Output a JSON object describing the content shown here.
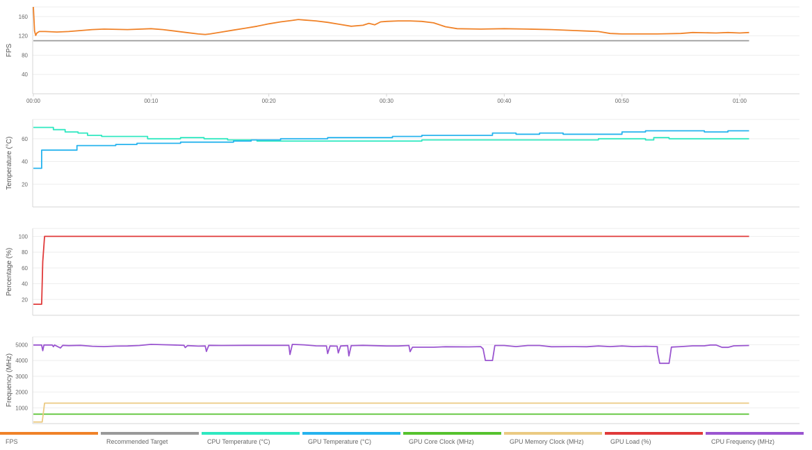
{
  "chart_data": [
    {
      "type": "line",
      "ylabel": "FPS",
      "ylim": [
        0,
        180
      ],
      "yticks": [
        40,
        80,
        120,
        160
      ],
      "xlim": [
        0,
        65
      ],
      "xticks": [
        0,
        10,
        20,
        30,
        40,
        50,
        60
      ],
      "xtick_labels": [
        "00:00",
        "00:10",
        "00:20",
        "00:30",
        "00:40",
        "00:50",
        "01:00"
      ],
      "series": [
        {
          "name": "FPS",
          "color": "#f08228",
          "points": [
            [
              0,
              180
            ],
            [
              0.1,
              130
            ],
            [
              0.2,
              121
            ],
            [
              0.3,
              126
            ],
            [
              0.5,
              129
            ],
            [
              1,
              129
            ],
            [
              2,
              128
            ],
            [
              3,
              129
            ],
            [
              4,
              131
            ],
            [
              5,
              133
            ],
            [
              6,
              134
            ],
            [
              8,
              133
            ],
            [
              10,
              135
            ],
            [
              11,
              133
            ],
            [
              12,
              130
            ],
            [
              13,
              127
            ],
            [
              14,
              124
            ],
            [
              14.6,
              123
            ],
            [
              15,
              124
            ],
            [
              16,
              128
            ],
            [
              17,
              132
            ],
            [
              18,
              136
            ],
            [
              19,
              140
            ],
            [
              20,
              145
            ],
            [
              21,
              149
            ],
            [
              22,
              152
            ],
            [
              22.5,
              154
            ],
            [
              23,
              153
            ],
            [
              24,
              151
            ],
            [
              25,
              148
            ],
            [
              26,
              144
            ],
            [
              27,
              140
            ],
            [
              28,
              142
            ],
            [
              28.5,
              146
            ],
            [
              29,
              143
            ],
            [
              29.5,
              149
            ],
            [
              30,
              150
            ],
            [
              31,
              151
            ],
            [
              32,
              151
            ],
            [
              33,
              150
            ],
            [
              34,
              147
            ],
            [
              35,
              139
            ],
            [
              36,
              135
            ],
            [
              38,
              134
            ],
            [
              40,
              135
            ],
            [
              42,
              134
            ],
            [
              44,
              133
            ],
            [
              46,
              131
            ],
            [
              47,
              130
            ],
            [
              48,
              129
            ],
            [
              49,
              125
            ],
            [
              50,
              124
            ],
            [
              52,
              124
            ],
            [
              53,
              124
            ],
            [
              55,
              125
            ],
            [
              56,
              127
            ],
            [
              58,
              126
            ],
            [
              59,
              127
            ],
            [
              60,
              126
            ],
            [
              60.8,
              127
            ]
          ]
        },
        {
          "name": "Recommended Target",
          "color": "#999999",
          "points": [
            [
              0,
              110
            ],
            [
              60.8,
              110
            ]
          ]
        }
      ]
    },
    {
      "type": "line",
      "ylabel": "Temperature (°C)",
      "ylim": [
        0,
        77
      ],
      "yticks": [
        20,
        40,
        60
      ],
      "xlim": [
        0,
        65
      ],
      "series": [
        {
          "name": "CPU Temperature (°C)",
          "color": "#2ee8c0",
          "points": [
            [
              0,
              70
            ],
            [
              1.7,
              70
            ],
            [
              1.7,
              68
            ],
            [
              2.7,
              68
            ],
            [
              2.7,
              66
            ],
            [
              3.8,
              66
            ],
            [
              3.8,
              65
            ],
            [
              4.6,
              65
            ],
            [
              4.6,
              63
            ],
            [
              5.8,
              63
            ],
            [
              5.8,
              62
            ],
            [
              9.7,
              62
            ],
            [
              9.7,
              60
            ],
            [
              12.5,
              60
            ],
            [
              12.5,
              61
            ],
            [
              14.5,
              61
            ],
            [
              14.5,
              60
            ],
            [
              16.5,
              60
            ],
            [
              16.5,
              59
            ],
            [
              19,
              59
            ],
            [
              19,
              58
            ],
            [
              33,
              58
            ],
            [
              33,
              59
            ],
            [
              48,
              59
            ],
            [
              48,
              60
            ],
            [
              52,
              60
            ],
            [
              52,
              59
            ],
            [
              52.7,
              59
            ],
            [
              52.7,
              61
            ],
            [
              54,
              61
            ],
            [
              54,
              60
            ],
            [
              60.8,
              60
            ]
          ]
        },
        {
          "name": "GPU Temperature (°C)",
          "color": "#26b3ee",
          "points": [
            [
              0,
              34
            ],
            [
              0.7,
              34
            ],
            [
              0.7,
              50
            ],
            [
              3.7,
              50
            ],
            [
              3.7,
              54
            ],
            [
              7,
              54
            ],
            [
              7,
              55
            ],
            [
              8.8,
              55
            ],
            [
              8.8,
              56
            ],
            [
              12.5,
              56
            ],
            [
              12.5,
              57
            ],
            [
              17,
              57
            ],
            [
              17,
              58
            ],
            [
              18.5,
              58
            ],
            [
              18.5,
              59
            ],
            [
              21,
              59
            ],
            [
              21,
              60
            ],
            [
              25,
              60
            ],
            [
              25,
              61
            ],
            [
              30.5,
              61
            ],
            [
              30.5,
              62
            ],
            [
              33,
              62
            ],
            [
              33,
              63
            ],
            [
              39,
              63
            ],
            [
              39,
              65
            ],
            [
              41,
              65
            ],
            [
              41,
              64
            ],
            [
              43,
              64
            ],
            [
              43,
              65
            ],
            [
              45,
              65
            ],
            [
              45,
              64
            ],
            [
              50,
              64
            ],
            [
              50,
              66
            ],
            [
              52,
              66
            ],
            [
              52,
              67
            ],
            [
              57,
              67
            ],
            [
              57,
              66
            ],
            [
              59,
              66
            ],
            [
              59,
              67
            ],
            [
              60.8,
              67
            ]
          ]
        }
      ]
    },
    {
      "type": "line",
      "ylabel": "Percentage (%)",
      "ylim": [
        0,
        110
      ],
      "yticks": [
        20,
        40,
        60,
        80,
        100
      ],
      "xlim": [
        0,
        65
      ],
      "series": [
        {
          "name": "GPU Load (%)",
          "color": "#e03a3a",
          "points": [
            [
              0,
              14
            ],
            [
              0.7,
              14
            ],
            [
              0.8,
              68
            ],
            [
              0.95,
              100
            ],
            [
              60.8,
              100
            ]
          ]
        }
      ]
    },
    {
      "type": "line",
      "ylabel": "Frequency (MHz)",
      "ylim": [
        0,
        5500
      ],
      "yticks": [
        1000,
        2000,
        3000,
        4000,
        5000
      ],
      "xlim": [
        0,
        65
      ],
      "series": [
        {
          "name": "GPU Core Clock (MHz)",
          "color": "#56c22e",
          "points": [
            [
              0,
              600
            ],
            [
              60.8,
              600
            ]
          ]
        },
        {
          "name": "GPU Memory Clock (MHz)",
          "color": "#ebca82",
          "points": [
            [
              0,
              100
            ],
            [
              0.75,
              100
            ],
            [
              0.95,
              1300
            ],
            [
              60.8,
              1300
            ]
          ]
        },
        {
          "name": "CPU Frequency (MHz)",
          "color": "#9a55d0",
          "points": [
            [
              0,
              4980
            ],
            [
              0.7,
              4980
            ],
            [
              0.8,
              4620
            ],
            [
              0.9,
              4980
            ],
            [
              1.6,
              4980
            ],
            [
              1.7,
              4870
            ],
            [
              1.8,
              4980
            ],
            [
              2,
              4900
            ],
            [
              2.3,
              4790
            ],
            [
              2.5,
              4960
            ],
            [
              3,
              4940
            ],
            [
              4,
              4960
            ],
            [
              5,
              4900
            ],
            [
              6,
              4880
            ],
            [
              7,
              4910
            ],
            [
              8,
              4920
            ],
            [
              9,
              4950
            ],
            [
              10,
              5020
            ],
            [
              11,
              5000
            ],
            [
              12,
              4980
            ],
            [
              12.8,
              4960
            ],
            [
              12.9,
              4820
            ],
            [
              13.1,
              4940
            ],
            [
              14,
              4910
            ],
            [
              14.6,
              4920
            ],
            [
              14.7,
              4570
            ],
            [
              14.9,
              4960
            ],
            [
              16,
              4950
            ],
            [
              18,
              4960
            ],
            [
              20,
              4960
            ],
            [
              21.7,
              4960
            ],
            [
              21.8,
              4380
            ],
            [
              22,
              5020
            ],
            [
              23,
              4990
            ],
            [
              24,
              4930
            ],
            [
              24.9,
              4920
            ],
            [
              25,
              4440
            ],
            [
              25.2,
              4920
            ],
            [
              25.8,
              4910
            ],
            [
              25.9,
              4480
            ],
            [
              26.1,
              4920
            ],
            [
              26.7,
              4940
            ],
            [
              26.8,
              4290
            ],
            [
              27,
              4940
            ],
            [
              28,
              4960
            ],
            [
              30,
              4920
            ],
            [
              31,
              4920
            ],
            [
              31.9,
              4950
            ],
            [
              32,
              4560
            ],
            [
              32.2,
              4840
            ],
            [
              34,
              4840
            ],
            [
              35,
              4870
            ],
            [
              37,
              4860
            ],
            [
              38,
              4880
            ],
            [
              38.2,
              4740
            ],
            [
              38.4,
              4000
            ],
            [
              39,
              4000
            ],
            [
              39.2,
              4950
            ],
            [
              40,
              4950
            ],
            [
              41,
              4880
            ],
            [
              42,
              4950
            ],
            [
              43,
              4950
            ],
            [
              44,
              4870
            ],
            [
              46,
              4880
            ],
            [
              47,
              4870
            ],
            [
              48,
              4920
            ],
            [
              49,
              4880
            ],
            [
              50,
              4920
            ],
            [
              51,
              4880
            ],
            [
              52,
              4900
            ],
            [
              53,
              4880
            ],
            [
              53,
              4590
            ],
            [
              53.2,
              3820
            ],
            [
              54,
              3820
            ],
            [
              54.2,
              4850
            ],
            [
              55,
              4880
            ],
            [
              56,
              4930
            ],
            [
              57,
              4930
            ],
            [
              57.5,
              4980
            ],
            [
              58,
              4980
            ],
            [
              58.5,
              4830
            ],
            [
              59,
              4830
            ],
            [
              59.5,
              4930
            ],
            [
              60.8,
              4950
            ]
          ]
        }
      ]
    }
  ],
  "legend": [
    {
      "label": "FPS",
      "color": "#f08228"
    },
    {
      "label": "Recommended Target",
      "color": "#999999"
    },
    {
      "label": "CPU Temperature (°C)",
      "color": "#2ee8c0"
    },
    {
      "label": "GPU Temperature (°C)",
      "color": "#26b3ee"
    },
    {
      "label": "GPU Core Clock (MHz)",
      "color": "#56c22e"
    },
    {
      "label": "GPU Memory Clock (MHz)",
      "color": "#ebca82"
    },
    {
      "label": "GPU Load (%)",
      "color": "#e03a3a"
    },
    {
      "label": "CPU Frequency (MHz)",
      "color": "#9a55d0"
    }
  ]
}
